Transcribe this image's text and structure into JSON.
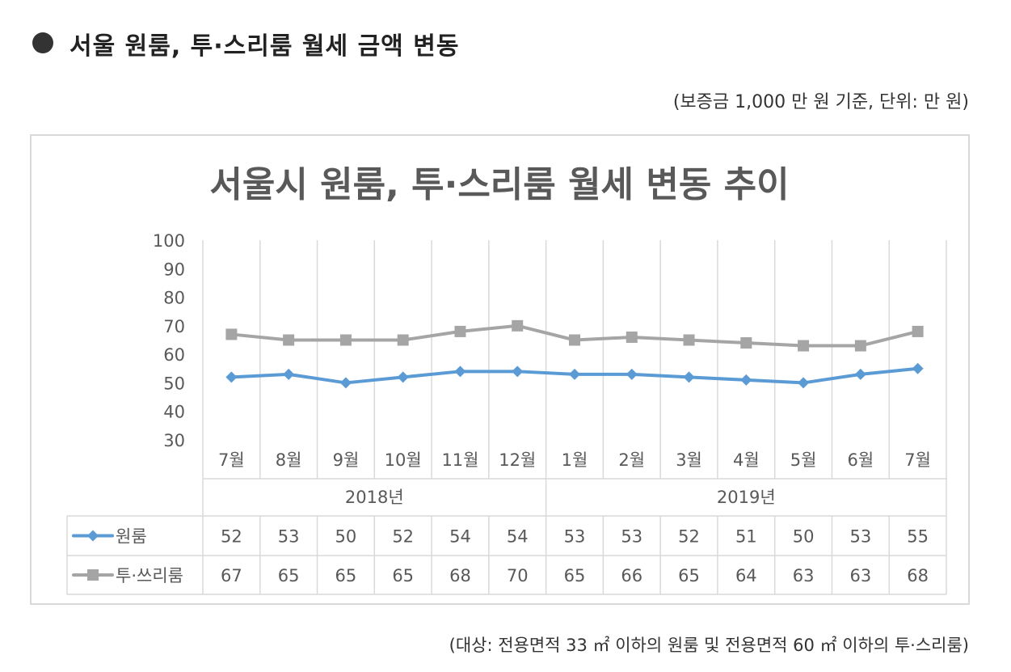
{
  "header": {
    "title": "서울 원룸, 투·스리룸 월세 금액 변동",
    "note_top": "(보증금 1,000 만 원 기준, 단위: 만 원)",
    "note_bottom": "(대상: 전용면적 33 ㎡ 이하의 원룸 및 전용면적 60 ㎡ 이하의 투·스리룸)"
  },
  "chart_data": {
    "type": "line",
    "title": "서울시 원룸, 투·스리룸 월세 변동 추이",
    "categories": [
      "7월",
      "8월",
      "9월",
      "10월",
      "11월",
      "12월",
      "1월",
      "2월",
      "3월",
      "4월",
      "5월",
      "6월",
      "7월"
    ],
    "groups": [
      {
        "label": "2018년",
        "count": 6
      },
      {
        "label": "2019년",
        "count": 7
      }
    ],
    "ylim": [
      30,
      100
    ],
    "yticks": [
      30,
      40,
      50,
      60,
      70,
      80,
      90,
      100
    ],
    "grid": "vertical",
    "legend": "data-table",
    "series": [
      {
        "name": "원룸",
        "color": "#5b9bd5",
        "marker": "diamond",
        "values": [
          52,
          53,
          50,
          52,
          54,
          54,
          53,
          53,
          52,
          51,
          50,
          53,
          55
        ]
      },
      {
        "name": "투·쓰리룸",
        "color": "#a5a5a5",
        "marker": "square",
        "values": [
          67,
          65,
          65,
          65,
          68,
          70,
          65,
          66,
          65,
          64,
          63,
          63,
          68
        ]
      }
    ]
  }
}
